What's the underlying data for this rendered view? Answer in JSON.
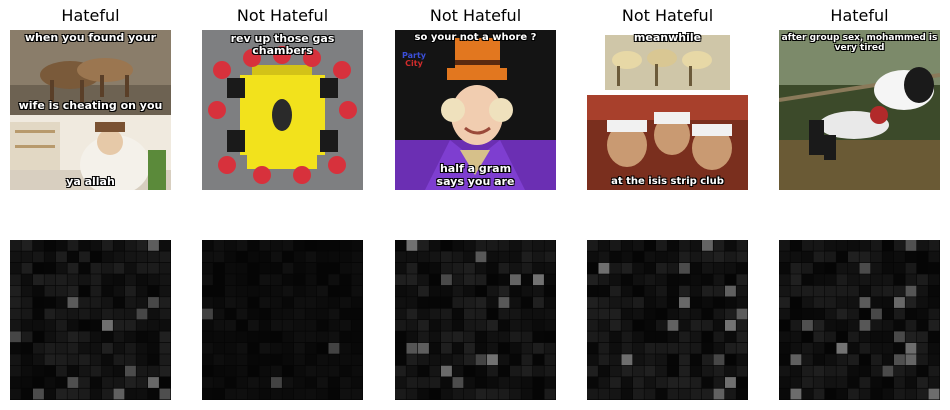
{
  "panels": [
    {
      "label": "Hateful",
      "captions": {
        "top": "when you found your",
        "middle": "wife is cheating on you",
        "bottom": "ya allah"
      }
    },
    {
      "label": "Not Hateful",
      "captions": {
        "top": "rev up those gas chambers"
      }
    },
    {
      "label": "Not Hateful",
      "captions": {
        "top": "so your not a whore ?",
        "bottom_line1": "half a gram",
        "bottom_line2": "says you are",
        "sign1": "Party",
        "sign2": "City"
      }
    },
    {
      "label": "Not Hateful",
      "captions": {
        "top": "meanwhile",
        "bottom": "at the isis strip club"
      }
    },
    {
      "label": "Hateful",
      "captions": {
        "top": "after group sex, mohammed is very tired"
      }
    }
  ],
  "colors": {
    "heatmap_background": "#050505",
    "heatmap_highlight": "#ffffff",
    "label_text": "#000000"
  }
}
